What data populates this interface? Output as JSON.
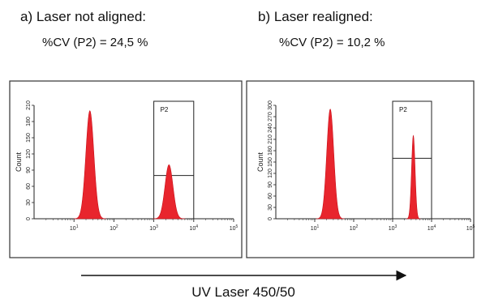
{
  "chart_data": [
    {
      "type": "area",
      "panel_title": "a) Laser not aligned:",
      "panel_subtitle": "%CV (P2) = 24,5 %",
      "ylabel": "Count",
      "yticks": [
        "0",
        "30",
        "60",
        "90",
        "120",
        "150",
        "180",
        "210"
      ],
      "ylim": [
        0,
        210
      ],
      "xscale": "log",
      "xlim": [
        1,
        100000
      ],
      "xticks": [
        "10^1",
        "10^2",
        "10^3",
        "10^4",
        "10^5"
      ],
      "gate": {
        "name": "P2",
        "x_range": [
          1000,
          10000
        ],
        "level": 80
      },
      "peaks": [
        {
          "center": 25,
          "height": 200,
          "width_decades": 0.1
        },
        {
          "center": 2400,
          "height": 100,
          "width_decades": 0.1
        }
      ]
    },
    {
      "type": "area",
      "panel_title": "b) Laser realigned:",
      "panel_subtitle": "%CV (P2) = 10,2 %",
      "ylabel": "Count",
      "yticks": [
        "0",
        "30",
        "60",
        "90",
        "120",
        "150",
        "180",
        "210",
        "240",
        "270",
        "300"
      ],
      "ylim": [
        0,
        300
      ],
      "xscale": "log",
      "xlim": [
        1,
        100000
      ],
      "xticks": [
        "10^1",
        "10^2",
        "10^3",
        "10^4",
        "10^5"
      ],
      "gate": {
        "name": "P2",
        "x_range": [
          1000,
          10000
        ],
        "level": 160
      },
      "peaks": [
        {
          "center": 25,
          "height": 290,
          "width_decades": 0.09
        },
        {
          "center": 3400,
          "height": 220,
          "width_decades": 0.045
        }
      ]
    }
  ],
  "xlabel": "UV Laser 450/50"
}
